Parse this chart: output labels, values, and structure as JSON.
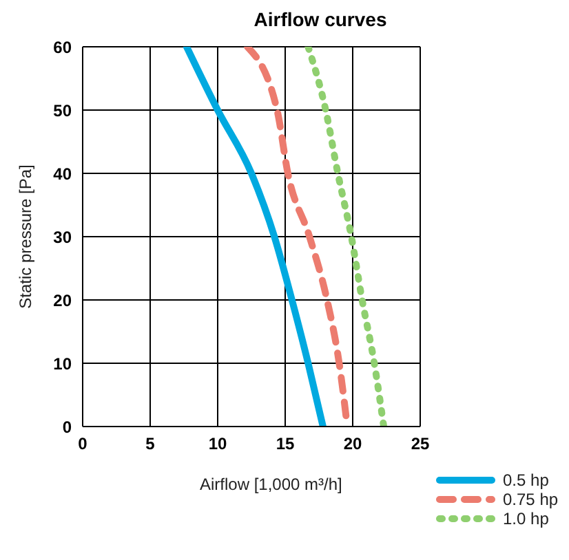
{
  "chart_data": {
    "type": "line",
    "title": "Airflow curves",
    "xlabel": "Airflow [1,000 m³/h]",
    "ylabel": "Static pressure  [Pa]",
    "xlim": [
      0,
      25
    ],
    "xticks": [
      0,
      5,
      10,
      15,
      20,
      25
    ],
    "ylim": [
      0,
      60
    ],
    "yticks": [
      0,
      10,
      20,
      30,
      40,
      50,
      60
    ],
    "grid": true,
    "legend": "bottom right",
    "marker": "none",
    "series": [
      {
        "name": "0.5 hp",
        "color": "#00a9e0",
        "line_style": "solid",
        "x": [
          7.7,
          10.0,
          12.5,
          14.2,
          15.5,
          16.7,
          17.8
        ],
        "values": [
          60,
          50,
          40,
          30,
          20,
          10,
          0
        ]
      },
      {
        "name": "0.75 hp",
        "color": "#ec7b6e",
        "line_style": "dashed",
        "x": [
          12.2,
          14.4,
          15.2,
          16.8,
          18.1,
          19.0,
          19.6
        ],
        "values": [
          60,
          50,
          40,
          30,
          20,
          10,
          0
        ]
      },
      {
        "name": "1.0 hp",
        "color": "#8fcf6f",
        "line_style": "dotted",
        "x": [
          16.7,
          18.0,
          18.9,
          19.9,
          20.7,
          21.6,
          22.3
        ],
        "values": [
          60,
          50,
          40,
          30,
          20,
          10,
          0
        ]
      }
    ]
  }
}
